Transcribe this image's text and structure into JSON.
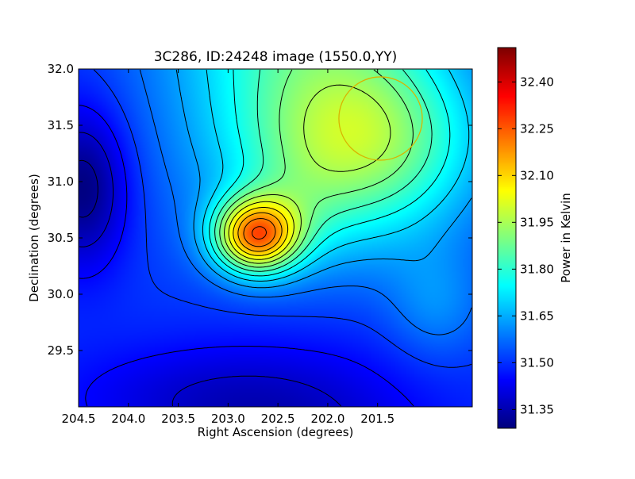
{
  "chart_data": {
    "type": "heatmap",
    "title": "3C286, ID:24248 image (1550.0,YY)",
    "xlabel": "Right Ascension (degrees)",
    "ylabel": "Declination (degrees)",
    "colorbar_label": "Power in Kelvin",
    "xlim": [
      204.5,
      200.55
    ],
    "ylim": [
      29.0,
      32.0
    ],
    "x_ticks": [
      {
        "value": 204.5,
        "label": "204.5"
      },
      {
        "value": 204.0,
        "label": "204.0"
      },
      {
        "value": 203.5,
        "label": "203.5"
      },
      {
        "value": 203.0,
        "label": "203.0"
      },
      {
        "value": 202.5,
        "label": "202.5"
      },
      {
        "value": 202.0,
        "label": "202.0"
      },
      {
        "value": 201.5,
        "label": "201.5"
      }
    ],
    "y_ticks": [
      {
        "value": 32.0,
        "label": "32.0"
      },
      {
        "value": 31.5,
        "label": "31.5"
      },
      {
        "value": 31.0,
        "label": "31.0"
      },
      {
        "value": 30.5,
        "label": "30.5"
      },
      {
        "value": 30.0,
        "label": "30.0"
      },
      {
        "value": 29.5,
        "label": "29.5"
      }
    ],
    "colorbar": {
      "vmin": 31.29,
      "vmax": 32.51,
      "colormap": "jet",
      "ticks": [
        {
          "value": 31.35,
          "label": "31.35"
        },
        {
          "value": 31.5,
          "label": "31.50"
        },
        {
          "value": 31.65,
          "label": "31.65"
        },
        {
          "value": 31.8,
          "label": "31.80"
        },
        {
          "value": 31.95,
          "label": "31.95"
        },
        {
          "value": 32.1,
          "label": "32.10"
        },
        {
          "value": 32.25,
          "label": "32.25"
        },
        {
          "value": 32.4,
          "label": "32.40"
        }
      ]
    },
    "peak": {
      "ra": 202.72,
      "dec": 30.52,
      "value": 32.48
    },
    "minimum": {
      "ra": 204.45,
      "dec": 30.95,
      "value": 31.3
    },
    "beam_circle": {
      "ra": 201.47,
      "dec": 31.56,
      "radius_deg": 0.37,
      "color": "#d8b400"
    },
    "contour_count": 19,
    "grid": false
  }
}
